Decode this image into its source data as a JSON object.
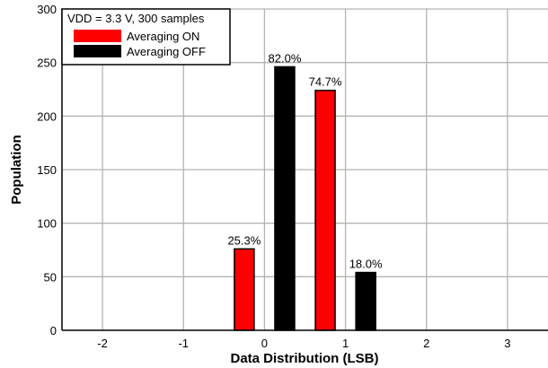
{
  "chart_data": {
    "type": "bar",
    "xlabel": "Data Distribution (LSB)",
    "ylabel": "Population",
    "ylim": [
      0,
      300
    ],
    "yticks": [
      0,
      50,
      100,
      150,
      200,
      250,
      300
    ],
    "categories": [
      "-2",
      "-1",
      "0",
      "1",
      "2",
      "3"
    ],
    "grid": true,
    "legend_position": "top-left",
    "legend_title": "VDD = 3.3 V, 300 samples",
    "series": [
      {
        "name": "Averaging ON",
        "color": "#ff0000",
        "values": [
          0,
          0,
          76,
          224,
          0,
          0
        ],
        "labels": [
          "",
          "",
          "25.3%",
          "74.7%",
          "",
          ""
        ]
      },
      {
        "name": "Averaging OFF",
        "color": "#000000",
        "values": [
          0,
          0,
          246,
          54,
          0,
          0
        ],
        "labels": [
          "",
          "",
          "82.0%",
          "18.0%",
          "",
          ""
        ]
      }
    ]
  }
}
